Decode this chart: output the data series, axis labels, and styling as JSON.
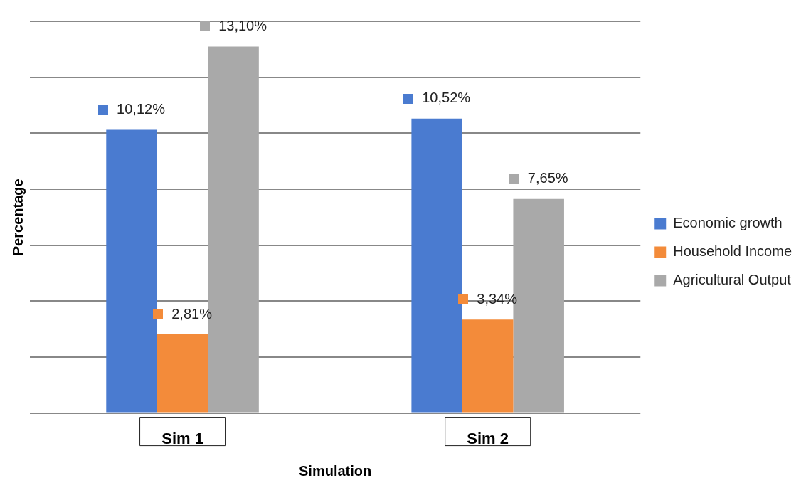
{
  "chart_data": {
    "type": "bar",
    "xlabel": "Simulation",
    "ylabel": "Percentage",
    "categories": [
      "Sim 1",
      "Sim 2"
    ],
    "series": [
      {
        "name": "Economic growth",
        "color": "#4a7bd0",
        "values": [
          10.12,
          10.52
        ],
        "value_labels": [
          "10,12%",
          "10,52%"
        ]
      },
      {
        "name": "Household Income",
        "color": "#f38b3a",
        "values": [
          2.81,
          3.34
        ],
        "value_labels": [
          "2,81%",
          "3,34%"
        ]
      },
      {
        "name": "Agricultural Output",
        "color": "#a9a9a9",
        "values": [
          13.1,
          7.65
        ],
        "value_labels": [
          "13,10%",
          "7,65%"
        ]
      }
    ],
    "ylim": [
      0,
      14
    ],
    "yticks": [
      {
        "value": 0,
        "label": null
      },
      {
        "value": 2,
        "label": null
      },
      {
        "value": 4,
        "label": null
      },
      {
        "value": 6,
        "label": null
      },
      {
        "value": 8,
        "label": null
      },
      {
        "value": 10,
        "label": null
      },
      {
        "value": 12,
        "label": null
      },
      {
        "value": 14,
        "label": null
      }
    ],
    "tick_labels": "x",
    "grid": "y",
    "legend": "right"
  }
}
